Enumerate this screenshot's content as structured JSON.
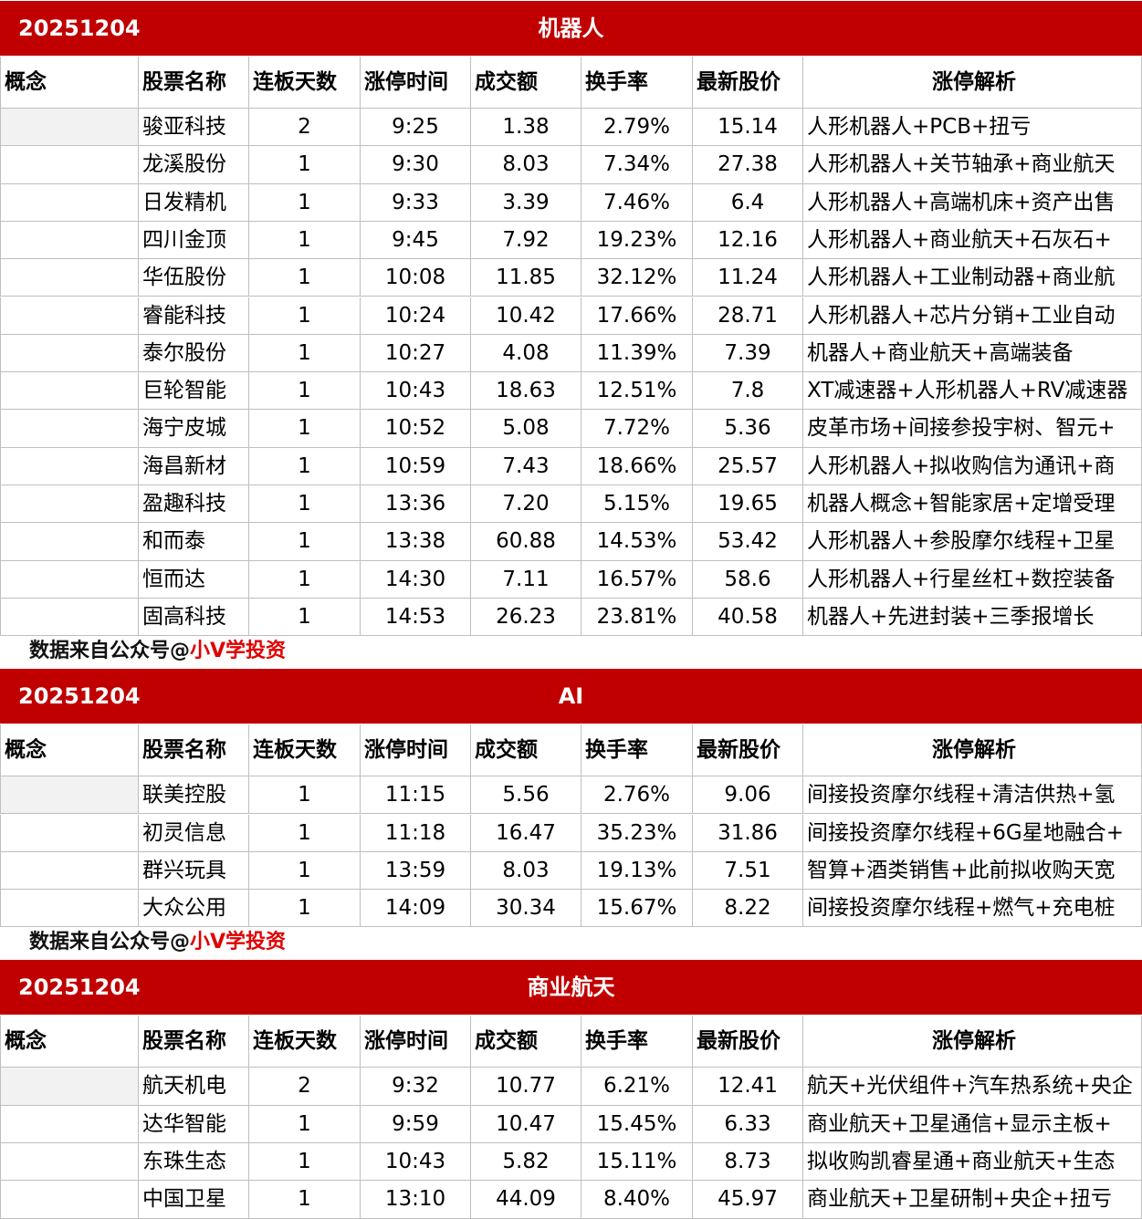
{
  "sections": [
    {
      "date": "20251204",
      "title": "机器人",
      "headers": [
        "概念",
        "股票名称",
        "连板天数",
        "涨停时间",
        "成交额",
        "换手率",
        "最新股价",
        "涨停解析"
      ],
      "rows": [
        [
          "骏亚科技",
          "2",
          "9:25",
          "1.38",
          "2.79%",
          "15.14",
          "人形机器人+PCB+扭亏"
        ],
        [
          "龙溪股份",
          "1",
          "9:30",
          "8.03",
          "7.34%",
          "27.38",
          "人形机器人+关节轴承+商业航天"
        ],
        [
          "日发精机",
          "1",
          "9:33",
          "3.39",
          "7.46%",
          "6.4",
          "人形机器人+高端机床+资产出售"
        ],
        [
          "四川金顶",
          "1",
          "9:45",
          "7.92",
          "19.23%",
          "12.16",
          "人形机器人+商业航天+石灰石+"
        ],
        [
          "华伍股份",
          "1",
          "10:08",
          "11.85",
          "32.12%",
          "11.24",
          "人形机器人+工业制动器+商业航"
        ],
        [
          "睿能科技",
          "1",
          "10:24",
          "10.42",
          "17.66%",
          "28.71",
          "人形机器人+芯片分销+工业自动"
        ],
        [
          "泰尔股份",
          "1",
          "10:27",
          "4.08",
          "11.39%",
          "7.39",
          "机器人+商业航天+高端装备"
        ],
        [
          "巨轮智能",
          "1",
          "10:43",
          "18.63",
          "12.51%",
          "7.8",
          "XT减速器+人形机器人+RV减速器"
        ],
        [
          "海宁皮城",
          "1",
          "10:52",
          "5.08",
          "7.72%",
          "5.36",
          "皮革市场+间接参投宇树、智元+"
        ],
        [
          "海昌新材",
          "1",
          "10:59",
          "7.43",
          "18.66%",
          "25.57",
          "人形机器人+拟收购信为通讯+商"
        ],
        [
          "盈趣科技",
          "1",
          "13:36",
          "7.20",
          "5.15%",
          "19.65",
          "机器人概念+智能家居+定增受理"
        ],
        [
          "和而泰",
          "1",
          "13:38",
          "60.88",
          "14.53%",
          "53.42",
          "人形机器人+参股摩尔线程+卫星"
        ],
        [
          "恒而达",
          "1",
          "14:30",
          "7.11",
          "16.57%",
          "58.6",
          "人形机器人+行星丝杠+数控装备"
        ],
        [
          "固高科技",
          "1",
          "14:53",
          "26.23",
          "23.81%",
          "40.58",
          "机器人+先进封装+三季报增长"
        ]
      ],
      "note": {
        "prefix": "数据来自公众号@",
        "highlight": "小V学投资"
      }
    },
    {
      "date": "20251204",
      "title": "AI",
      "headers": [
        "概念",
        "股票名称",
        "连板天数",
        "涨停时间",
        "成交额",
        "换手率",
        "最新股价",
        "涨停解析"
      ],
      "rows": [
        [
          "联美控股",
          "1",
          "11:15",
          "5.56",
          "2.76%",
          "9.06",
          "间接投资摩尔线程+清洁供热+氢"
        ],
        [
          "初灵信息",
          "1",
          "11:18",
          "16.47",
          "35.23%",
          "31.86",
          "间接投资摩尔线程+6G星地融合+"
        ],
        [
          "群兴玩具",
          "1",
          "13:59",
          "8.03",
          "19.13%",
          "7.51",
          "智算+酒类销售+此前拟收购天宽"
        ],
        [
          "大众公用",
          "1",
          "14:09",
          "30.34",
          "15.67%",
          "8.22",
          "间接投资摩尔线程+燃气+充电桩"
        ]
      ],
      "note": {
        "prefix": "数据来自公众号@",
        "highlight": "小V学投资"
      }
    },
    {
      "date": "20251204",
      "title": "商业航天",
      "headers": [
        "概念",
        "股票名称",
        "连板天数",
        "涨停时间",
        "成交额",
        "换手率",
        "最新股价",
        "涨停解析"
      ],
      "rows": [
        [
          "航天机电",
          "2",
          "9:32",
          "10.77",
          "6.21%",
          "12.41",
          "航天+光伏组件+汽车热系统+央企"
        ],
        [
          "达华智能",
          "1",
          "9:59",
          "10.47",
          "15.45%",
          "6.33",
          "商业航天+卫星通信+显示主板+"
        ],
        [
          "东珠生态",
          "1",
          "10:43",
          "5.82",
          "15.11%",
          "8.73",
          "拟收购凯睿星通+商业航天+生态"
        ],
        [
          "中国卫星",
          "1",
          "13:10",
          "44.09",
          "8.40%",
          "45.97",
          "商业航天+卫星研制+央企+扭亏"
        ]
      ]
    }
  ]
}
